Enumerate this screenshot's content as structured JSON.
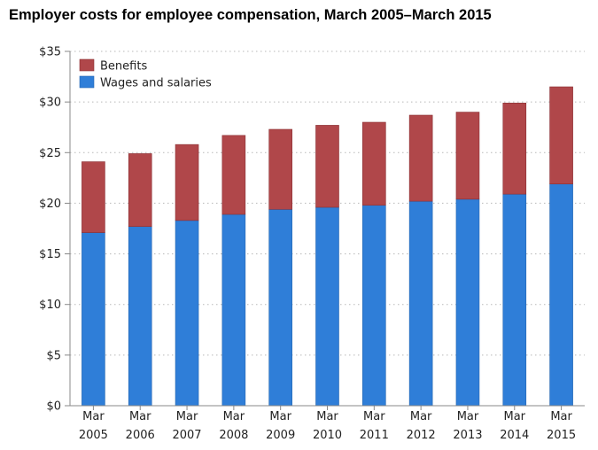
{
  "chart_data": {
    "type": "bar",
    "stacked": true,
    "title": "Employer costs for employee compensation, March 2005–March 2015",
    "categories": [
      [
        "Mar",
        "2005"
      ],
      [
        "Mar",
        "2006"
      ],
      [
        "Mar",
        "2007"
      ],
      [
        "Mar",
        "2008"
      ],
      [
        "Mar",
        "2009"
      ],
      [
        "Mar",
        "2010"
      ],
      [
        "Mar",
        "2011"
      ],
      [
        "Mar",
        "2012"
      ],
      [
        "Mar",
        "2013"
      ],
      [
        "Mar",
        "2014"
      ],
      [
        "Mar",
        "2015"
      ]
    ],
    "series": [
      {
        "name": "Wages and salaries",
        "color": "#2f7ed8",
        "values": [
          17.1,
          17.7,
          18.3,
          18.9,
          19.4,
          19.6,
          19.8,
          20.2,
          20.4,
          20.9,
          21.9
        ]
      },
      {
        "name": "Benefits",
        "color": "#b0474a",
        "values": [
          7.0,
          7.2,
          7.5,
          7.8,
          7.9,
          8.1,
          8.2,
          8.5,
          8.6,
          9.0,
          9.6
        ]
      }
    ],
    "ylim": [
      0,
      35
    ],
    "yticks": [
      "$0",
      "$5",
      "$10",
      "$15",
      "$20",
      "$25",
      "$30",
      "$35"
    ],
    "ytick_values": [
      0,
      5,
      10,
      15,
      20,
      25,
      30,
      35
    ],
    "grid": true,
    "legend_position": "top-left",
    "legend": [
      "Benefits",
      "Wages and salaries"
    ]
  }
}
